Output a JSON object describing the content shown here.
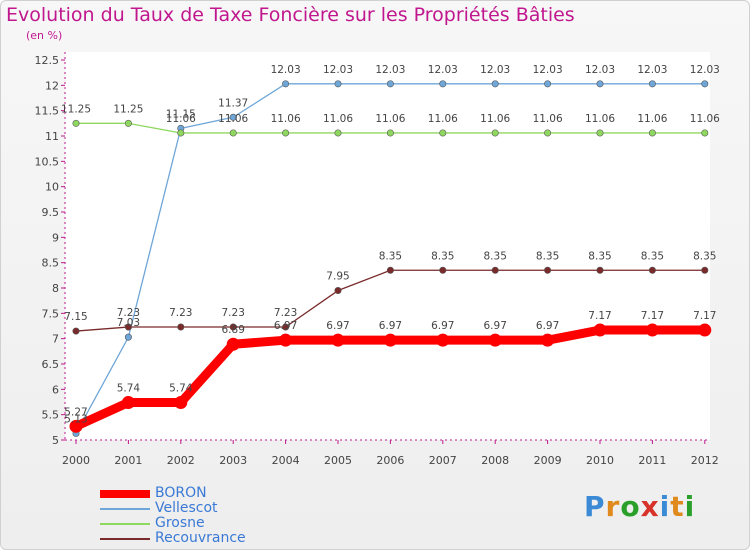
{
  "header": {
    "title": "Evolution du Taux de Taxe Foncière sur les Propriétés Bâties",
    "unit": "(en %)"
  },
  "brand": {
    "letters": [
      "P",
      "r",
      "o",
      "x",
      "i",
      "t",
      "i"
    ],
    "colors": [
      "#3a8ad6",
      "#e08a1e",
      "#2aa02a",
      "#d8332a",
      "#3a8ad6",
      "#e08a1e",
      "#2aa02a"
    ]
  },
  "colors": {
    "title": "#c0178e"
  },
  "chart_data": {
    "type": "line",
    "title": "Evolution du Taux de Taxe Foncière sur les Propriétés Bâties",
    "ylabel": "(en %)",
    "xlabel": "",
    "ylim": [
      5,
      12.5
    ],
    "yticks": [
      "5",
      "5.5",
      "6",
      "6.5",
      "7",
      "7.5",
      "8",
      "8.5",
      "9",
      "9.5",
      "10",
      "10.5",
      "11",
      "11.5",
      "12",
      "12.5"
    ],
    "x": [
      "2000",
      "2001",
      "2002",
      "2003",
      "2004",
      "2005",
      "2006",
      "2007",
      "2008",
      "2009",
      "2010",
      "2011",
      "2012"
    ],
    "grid": false,
    "series": [
      {
        "name": "BORON",
        "color": "#ff0000",
        "values": [
          5.27,
          5.74,
          5.74,
          6.89,
          6.97,
          6.97,
          6.97,
          6.97,
          6.97,
          6.97,
          7.17,
          7.17,
          7.17
        ],
        "labels": [
          "5.27",
          "5.74",
          "5.74",
          "6.89",
          "6.97",
          "6.97",
          "6.97",
          "6.97",
          "6.97",
          "6.97",
          "7.17",
          "7.17",
          "7.17"
        ]
      },
      {
        "name": "Vellescot",
        "color": "#6ea6d8",
        "values": [
          5.13,
          7.03,
          11.15,
          11.37,
          12.03,
          12.03,
          12.03,
          12.03,
          12.03,
          12.03,
          12.03,
          12.03,
          12.03
        ],
        "labels": [
          "5.13",
          "7.03",
          "11.15",
          "11.37",
          "12.03",
          "12.03",
          "12.03",
          "12.03",
          "12.03",
          "12.03",
          "12.03",
          "12.03",
          "12.03"
        ]
      },
      {
        "name": "Grosne",
        "color": "#8fd860",
        "values": [
          11.25,
          11.25,
          11.06,
          11.06,
          11.06,
          11.06,
          11.06,
          11.06,
          11.06,
          11.06,
          11.06,
          11.06,
          11.06
        ],
        "labels": [
          "11.25",
          "11.25",
          "11.06",
          "11.06",
          "11.06",
          "11.06",
          "11.06",
          "11.06",
          "11.06",
          "11.06",
          "11.06",
          "11.06",
          "11.06"
        ]
      },
      {
        "name": "Recouvrance",
        "color": "#7a2a2a",
        "values": [
          7.15,
          7.23,
          7.23,
          7.23,
          7.23,
          7.95,
          8.35,
          8.35,
          8.35,
          8.35,
          8.35,
          8.35,
          8.35
        ],
        "labels": [
          "7.15",
          "7.23",
          "7.23",
          "7.23",
          "7.23",
          "7.95",
          "8.35",
          "8.35",
          "8.35",
          "8.35",
          "8.35",
          "8.35",
          "8.35"
        ]
      }
    ]
  }
}
